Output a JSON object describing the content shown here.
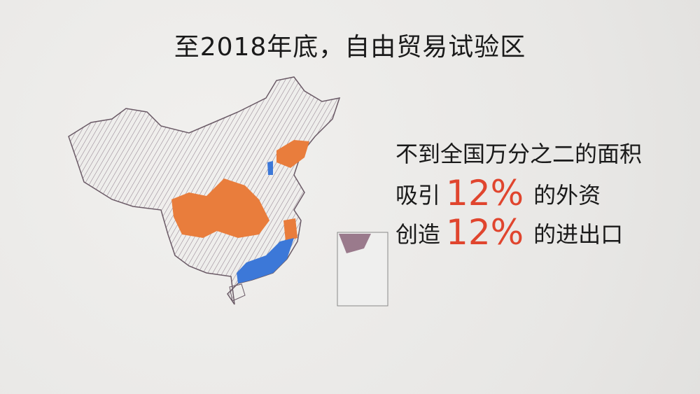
{
  "title": "至2018年底，自由贸易试验区",
  "stats": [
    {
      "text": "不到全国万分之二的面积"
    },
    {
      "prefix": "吸引",
      "value": "12%",
      "suffix": "的外资"
    },
    {
      "prefix": "创造",
      "value": "12%",
      "suffix": "的进出口"
    }
  ],
  "colors": {
    "highlight_text": "#e0452e",
    "ftz_orange": "#e97d3c",
    "ftz_blue": "#3c78d8",
    "map_outline": "#6a5a66"
  }
}
